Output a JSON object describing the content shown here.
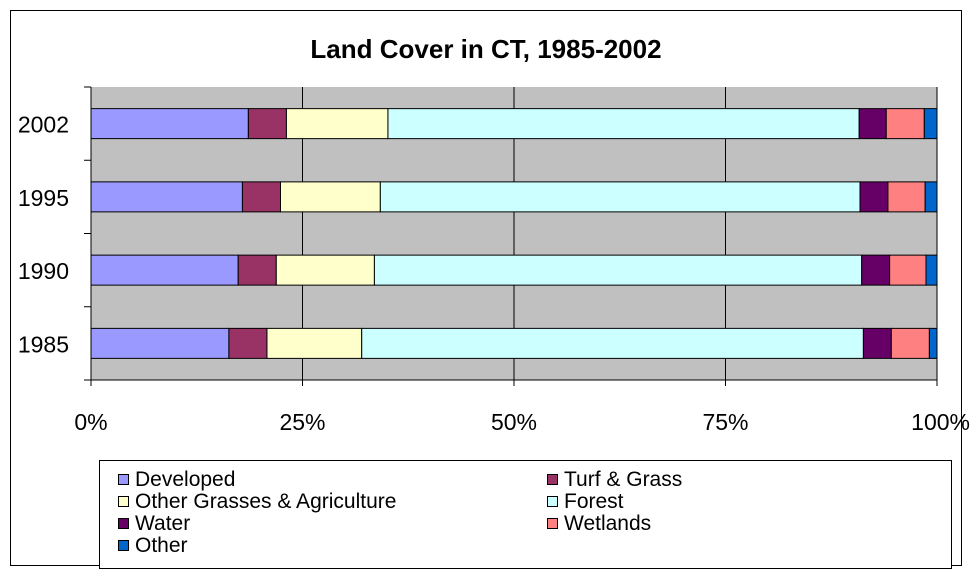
{
  "chart_data": {
    "type": "bar",
    "orientation": "horizontal",
    "stacked": "percent",
    "title": "Land Cover in CT, 1985-2002",
    "xlabel": "",
    "ylabel": "",
    "xlim": [
      0,
      100
    ],
    "x_tick_labels": [
      "0%",
      "25%",
      "50%",
      "75%",
      "100%"
    ],
    "x_tick_values": [
      0,
      25,
      50,
      75,
      100
    ],
    "grid": true,
    "plot_background": "#c0c0c0",
    "legend_position": "bottom",
    "categories": [
      "2002",
      "1995",
      "1990",
      "1985"
    ],
    "series": [
      {
        "name": "Developed",
        "color": "#9999ff",
        "values": [
          18.6,
          17.9,
          17.4,
          16.3
        ]
      },
      {
        "name": "Turf & Grass",
        "color": "#993366",
        "values": [
          4.5,
          4.5,
          4.5,
          4.5
        ]
      },
      {
        "name": "Other Grasses & Agriculture",
        "color": "#ffffcc",
        "values": [
          12.0,
          11.8,
          11.6,
          11.2
        ]
      },
      {
        "name": "Forest",
        "color": "#ccffff",
        "values": [
          55.7,
          56.7,
          57.6,
          59.3
        ]
      },
      {
        "name": "Water",
        "color": "#660066",
        "values": [
          3.2,
          3.3,
          3.3,
          3.3
        ]
      },
      {
        "name": "Wetlands",
        "color": "#ff8080",
        "values": [
          4.5,
          4.4,
          4.3,
          4.5
        ]
      },
      {
        "name": "Other",
        "color": "#0066cc",
        "values": [
          1.5,
          1.4,
          1.3,
          0.9
        ]
      }
    ]
  }
}
